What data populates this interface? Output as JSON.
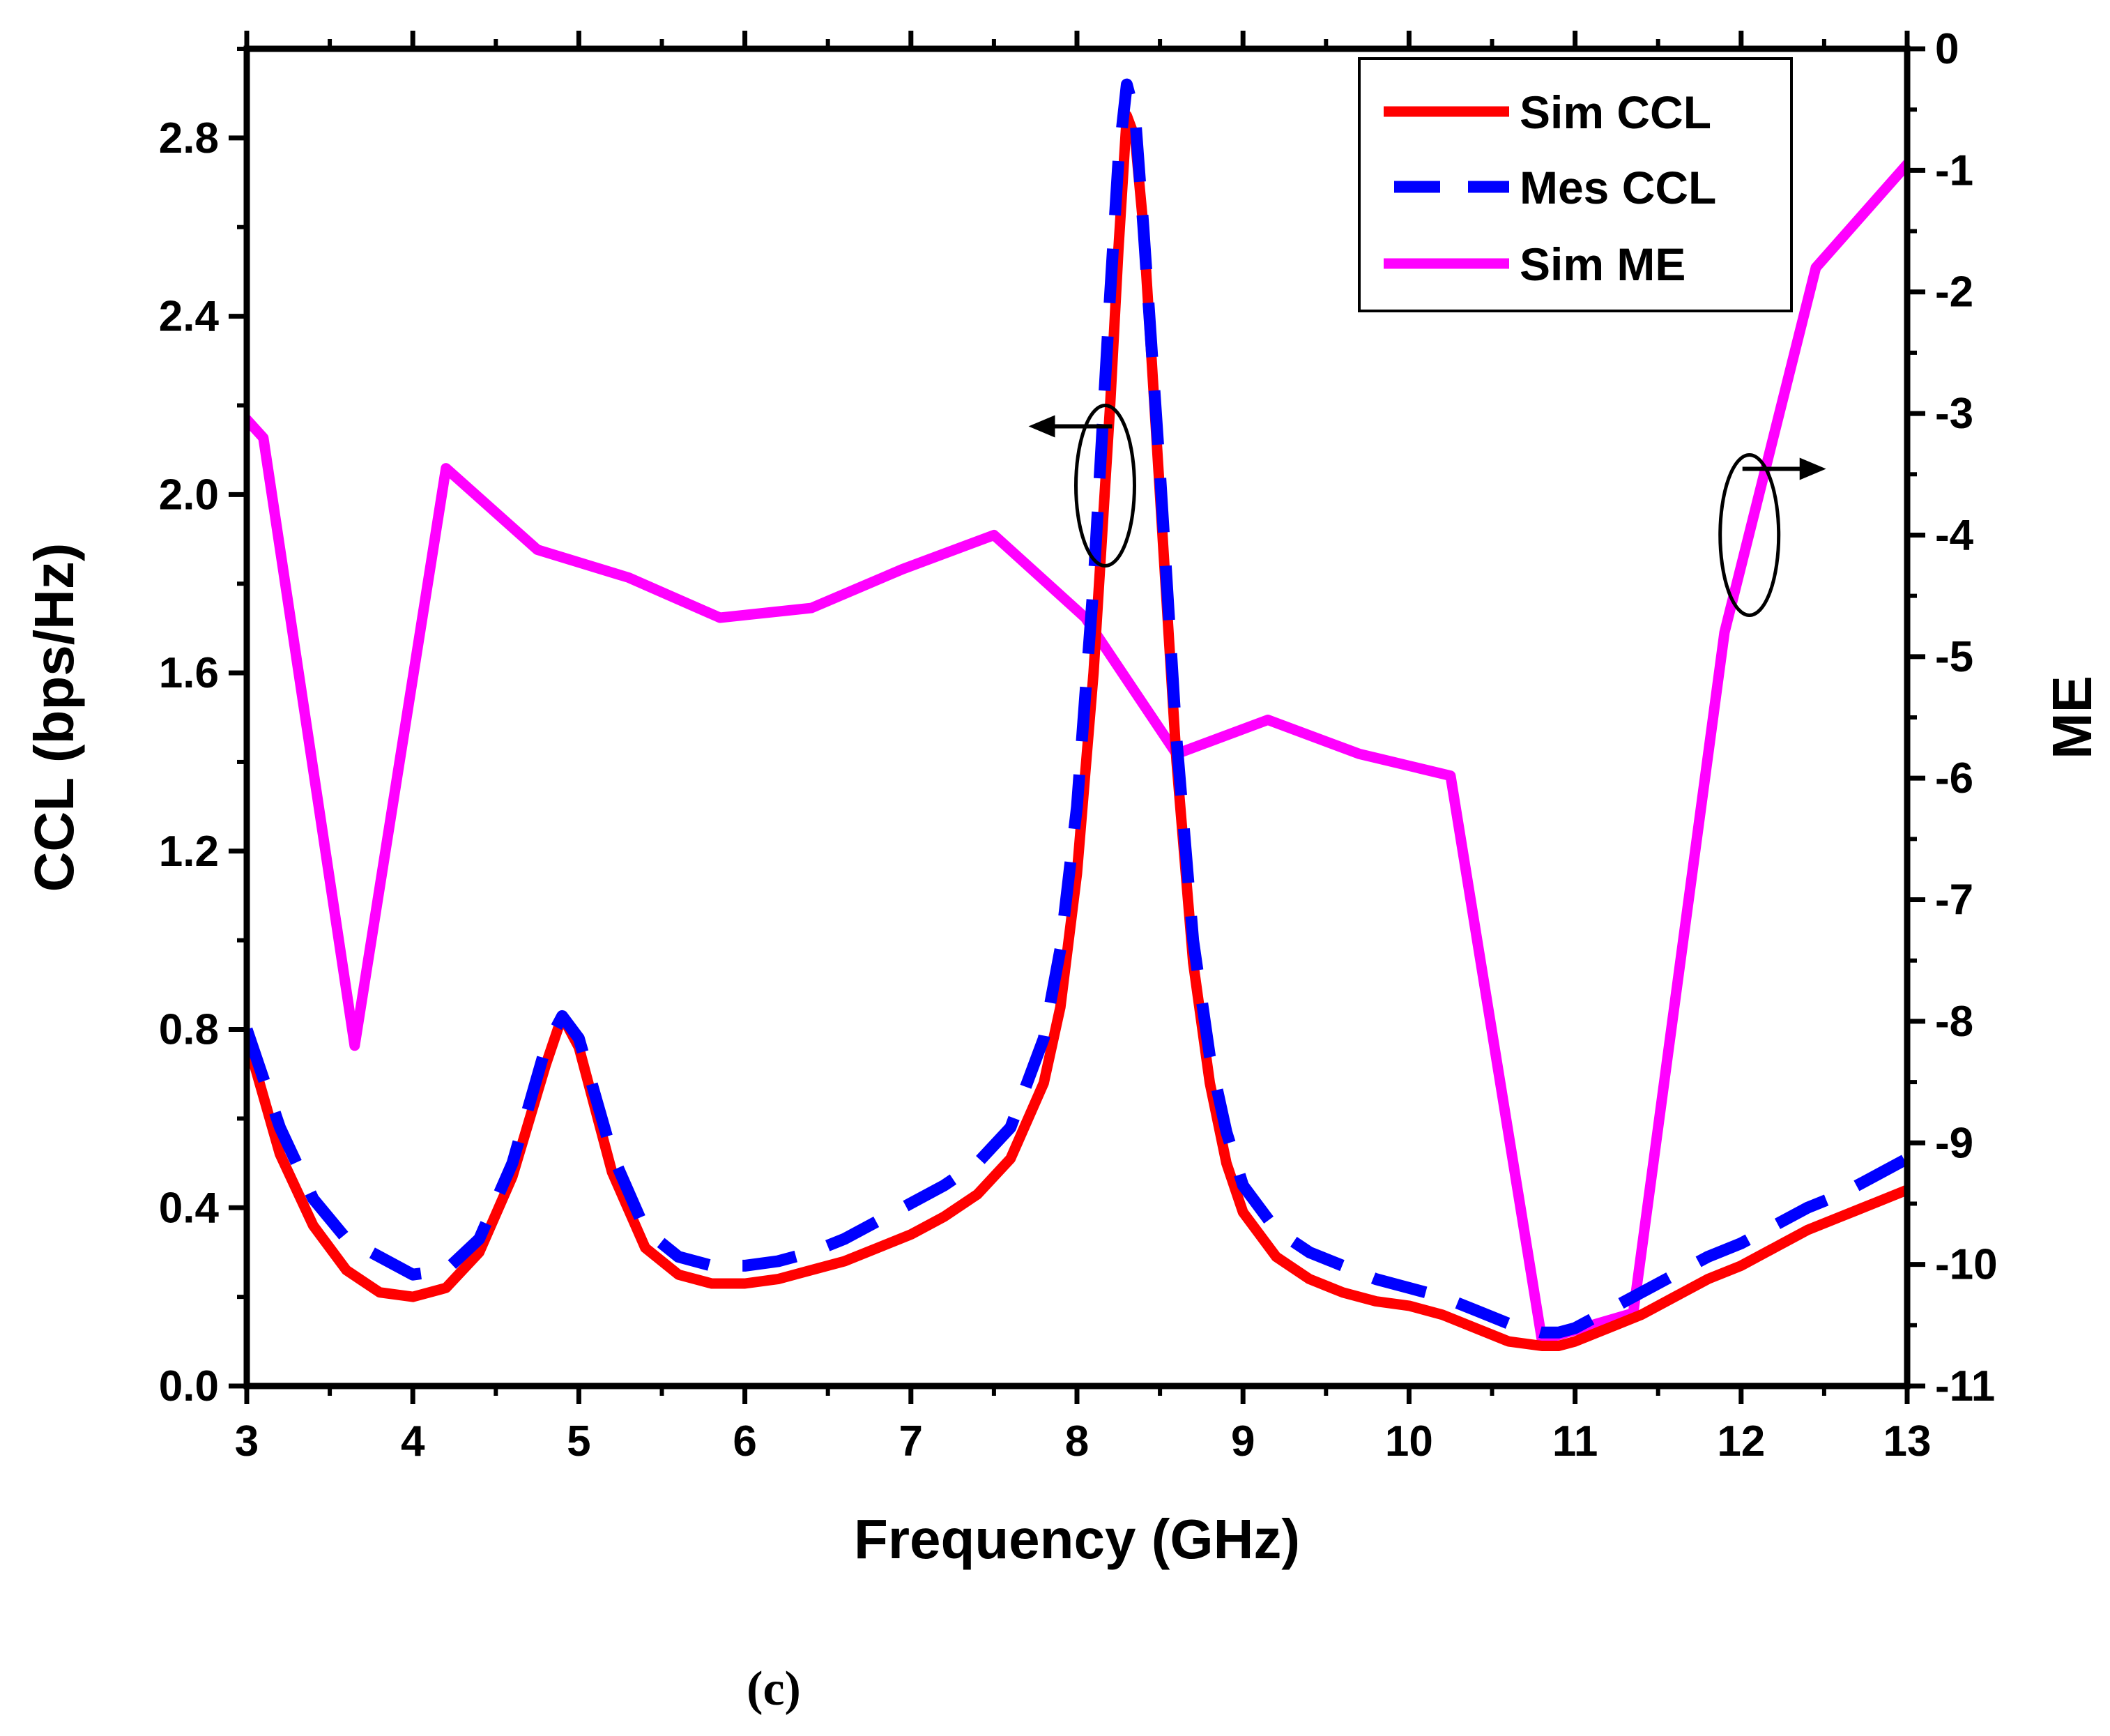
{
  "chart_data": {
    "type": "line",
    "caption": "(c)",
    "xlabel": "Frequency (GHz)",
    "ylabel_left": "CCL (bps/Hz)",
    "ylabel_right": "ME",
    "xlim": [
      3,
      13
    ],
    "ylim_left": [
      0,
      3.0
    ],
    "ylim_right": [
      -11,
      0
    ],
    "x_ticks": [
      3,
      4,
      5,
      6,
      7,
      8,
      9,
      10,
      11,
      12,
      13
    ],
    "y_left_ticks": [
      0.0,
      0.4,
      0.8,
      1.2,
      1.6,
      2.0,
      2.4,
      2.8
    ],
    "y_left_tick_labels": [
      "0.0",
      "0.4",
      "0.8",
      "1.2",
      "1.6",
      "2.0",
      "2.4",
      "2.8"
    ],
    "y_right_ticks": [
      0,
      -1,
      -2,
      -3,
      -4,
      -5,
      -6,
      -7,
      -8,
      -9,
      -10,
      -11
    ],
    "grid": false,
    "legend_position": "top-right",
    "series": [
      {
        "name": "Sim CCL",
        "axis": "left",
        "color": "#ff0000",
        "style": "solid",
        "x": [
          3.0,
          3.2,
          3.4,
          3.6,
          3.8,
          4.0,
          4.2,
          4.4,
          4.6,
          4.8,
          4.9,
          5.0,
          5.2,
          5.4,
          5.6,
          5.8,
          6.0,
          6.2,
          6.4,
          6.6,
          6.8,
          7.0,
          7.2,
          7.4,
          7.6,
          7.8,
          7.9,
          8.0,
          8.1,
          8.2,
          8.25,
          8.3,
          8.35,
          8.4,
          8.5,
          8.6,
          8.7,
          8.8,
          8.9,
          9.0,
          9.2,
          9.4,
          9.6,
          9.8,
          10.0,
          10.2,
          10.4,
          10.6,
          10.8,
          10.9,
          11.0,
          11.2,
          11.4,
          11.6,
          11.8,
          12.0,
          12.2,
          12.4,
          12.6,
          12.8,
          13.0
        ],
        "values": [
          0.78,
          0.52,
          0.36,
          0.26,
          0.21,
          0.2,
          0.22,
          0.3,
          0.47,
          0.72,
          0.83,
          0.76,
          0.48,
          0.31,
          0.25,
          0.23,
          0.23,
          0.24,
          0.26,
          0.28,
          0.31,
          0.34,
          0.38,
          0.43,
          0.51,
          0.68,
          0.85,
          1.15,
          1.6,
          2.2,
          2.55,
          2.85,
          2.8,
          2.6,
          2.0,
          1.4,
          0.95,
          0.68,
          0.5,
          0.39,
          0.29,
          0.24,
          0.21,
          0.19,
          0.18,
          0.16,
          0.13,
          0.1,
          0.09,
          0.09,
          0.1,
          0.13,
          0.16,
          0.2,
          0.24,
          0.27,
          0.31,
          0.35,
          0.38,
          0.41,
          0.44
        ]
      },
      {
        "name": "Mes CCL",
        "axis": "left",
        "color": "#0000ff",
        "style": "dashed",
        "x": [
          3.0,
          3.2,
          3.4,
          3.6,
          3.8,
          4.0,
          4.2,
          4.4,
          4.6,
          4.8,
          4.9,
          5.0,
          5.2,
          5.4,
          5.6,
          5.8,
          6.0,
          6.2,
          6.4,
          6.6,
          6.8,
          7.0,
          7.2,
          7.4,
          7.6,
          7.8,
          7.9,
          8.0,
          8.1,
          8.2,
          8.25,
          8.3,
          8.35,
          8.4,
          8.5,
          8.6,
          8.7,
          8.8,
          8.9,
          9.0,
          9.2,
          9.4,
          9.6,
          9.8,
          10.0,
          10.2,
          10.4,
          10.6,
          10.8,
          10.9,
          11.0,
          11.2,
          11.4,
          11.6,
          11.8,
          12.0,
          12.2,
          12.4,
          12.6,
          12.8,
          13.0
        ],
        "values": [
          0.8,
          0.58,
          0.42,
          0.33,
          0.29,
          0.25,
          0.26,
          0.33,
          0.5,
          0.76,
          0.83,
          0.78,
          0.52,
          0.35,
          0.29,
          0.27,
          0.27,
          0.28,
          0.3,
          0.33,
          0.37,
          0.41,
          0.45,
          0.5,
          0.58,
          0.78,
          0.98,
          1.3,
          1.8,
          2.45,
          2.75,
          2.92,
          2.85,
          2.6,
          2.05,
          1.45,
          1.0,
          0.74,
          0.57,
          0.45,
          0.35,
          0.3,
          0.27,
          0.24,
          0.22,
          0.2,
          0.17,
          0.14,
          0.12,
          0.12,
          0.13,
          0.17,
          0.21,
          0.25,
          0.29,
          0.32,
          0.36,
          0.4,
          0.43,
          0.47,
          0.51
        ]
      },
      {
        "name": "Sim ME",
        "axis": "right",
        "color": "#ff00ff",
        "style": "solid",
        "x": [
          3.0,
          3.1,
          3.65,
          4.2,
          4.75,
          5.3,
          5.85,
          6.4,
          6.95,
          7.5,
          8.05,
          8.6,
          9.15,
          9.7,
          10.25,
          10.8,
          11.35,
          11.9,
          12.45,
          13.0
        ],
        "values": [
          -3.05,
          -3.2,
          -8.2,
          -3.45,
          -4.12,
          -4.35,
          -4.68,
          -4.6,
          -4.28,
          -4.0,
          -4.68,
          -5.8,
          -5.52,
          -5.8,
          -5.98,
          -10.62,
          -10.4,
          -4.8,
          -1.8,
          -0.95
        ]
      }
    ],
    "annotations": [
      {
        "type": "ellipse-arrow",
        "target_axis": "left",
        "direction": "left",
        "at": {
          "x": 8.17,
          "y": 2.02
        }
      },
      {
        "type": "ellipse-arrow",
        "target_axis": "right",
        "direction": "right",
        "at": {
          "x": 12.05,
          "y": -4.0
        }
      }
    ]
  }
}
